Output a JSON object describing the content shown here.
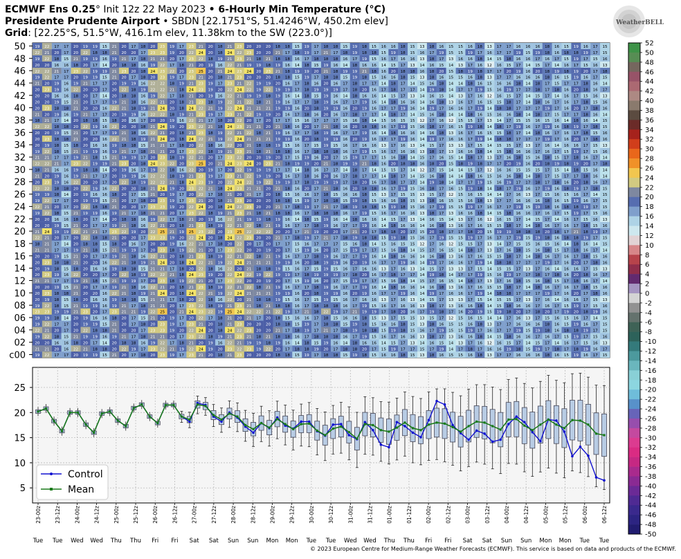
{
  "header": {
    "line1_bold_a": "ECMWF Ens 0.25",
    "line1_deg": "°",
    "line1_init": " Init 12z 22 May 2023 ",
    "line1_bullet": "•",
    "line1_bold_b": " 6-Hourly Min Temperature (°C)",
    "line2_bold": "Presidente Prudente Airport",
    "line2_rest": " • SBDN [22.1751°S, 51.4246°W, 450.2m elev]",
    "line3_bold": "Grid",
    "line3_rest": ": [22.25°S, 51.5°W, 416.1m elev, 11.38km to the SW (223.0°)]"
  },
  "logo": {
    "text": "WeatherBELL"
  },
  "copyright": "© 2023 European Centre for Medium-Range Weather Forecasts (ECMWF). This service is based on data and products of the ECMWF.",
  "chart_data": [
    {
      "type": "heatmap",
      "title": "6-Hourly Min Temperature (°C)",
      "y_tick_labels": [
        "c00",
        "02",
        "04",
        "06",
        "08",
        "10",
        "12",
        "14",
        "16",
        "18",
        "20",
        "22",
        "24",
        "26",
        "28",
        "30",
        "32",
        "34",
        "36",
        "38",
        "40",
        "42",
        "44",
        "46",
        "48",
        "50"
      ],
      "members": 51,
      "columns": 60,
      "control_row_label": "c00",
      "colorbar": {
        "ticks": [
          52,
          50,
          48,
          46,
          44,
          42,
          40,
          38,
          36,
          34,
          32,
          30,
          28,
          26,
          24,
          22,
          20,
          18,
          16,
          14,
          12,
          10,
          8,
          6,
          4,
          2,
          0,
          -2,
          -4,
          -6,
          -8,
          -10,
          -12,
          -14,
          -16,
          -18,
          -20,
          -22,
          -24,
          -26,
          -28,
          -30,
          -32,
          -34,
          -36,
          -38,
          -40,
          -42,
          -44,
          -46,
          -48,
          -50
        ],
        "stops": [
          [
            52,
            "#2e8b3f"
          ],
          [
            50,
            "#4e9a51"
          ],
          [
            48,
            "#5f7f57"
          ],
          [
            46,
            "#8a4f64"
          ],
          [
            44,
            "#a3576b"
          ],
          [
            42,
            "#b27a78"
          ],
          [
            40,
            "#a8988e"
          ],
          [
            38,
            "#6b5b4c"
          ],
          [
            36,
            "#4b3a34"
          ],
          [
            34,
            "#8b1b1b"
          ],
          [
            32,
            "#c0281c"
          ],
          [
            30,
            "#e2541a"
          ],
          [
            28,
            "#f07a1c"
          ],
          [
            26,
            "#f0a834"
          ],
          [
            24,
            "#f4e46a"
          ],
          [
            22,
            "#b0b098"
          ],
          [
            20,
            "#4c5fa7"
          ],
          [
            18,
            "#5f7ab8"
          ],
          [
            16,
            "#9fc3e0"
          ],
          [
            14,
            "#bce2ec"
          ],
          [
            12,
            "#e0eef2"
          ],
          [
            10,
            "#e4b8b8"
          ],
          [
            8,
            "#c9545a"
          ],
          [
            6,
            "#a5323c"
          ],
          [
            4,
            "#7a2a5a"
          ],
          [
            2,
            "#4a2a84"
          ],
          [
            0,
            "#ffffff"
          ],
          [
            -2,
            "#a9a9a9"
          ],
          [
            -4,
            "#7a7a7a"
          ],
          [
            -6,
            "#4d6a60"
          ],
          [
            -8,
            "#2f5a4c"
          ],
          [
            -10,
            "#2b6a68"
          ],
          [
            -12,
            "#3d8a8d"
          ],
          [
            -14,
            "#5aa7ad"
          ],
          [
            -16,
            "#79c4cc"
          ],
          [
            -18,
            "#98dbe0"
          ],
          [
            -20,
            "#7fd0df"
          ],
          [
            -22,
            "#5fa9d4"
          ],
          [
            -24,
            "#5078c0"
          ],
          [
            -26,
            "#7d4fb1"
          ],
          [
            -28,
            "#b04ca8"
          ],
          [
            -30,
            "#d84596"
          ],
          [
            -32,
            "#e0308a"
          ],
          [
            -34,
            "#d4267c"
          ],
          [
            -36,
            "#b82a8a"
          ],
          [
            -38,
            "#9a2a90"
          ],
          [
            -40,
            "#7a2a96"
          ],
          [
            -42,
            "#5c2a96"
          ],
          [
            -44,
            "#422a90"
          ],
          [
            -46,
            "#32288a"
          ],
          [
            -48,
            "#261f7a"
          ],
          [
            -50,
            "#1b1966"
          ]
        ]
      },
      "member_offsets": [
        0,
        1,
        -1,
        0,
        1,
        0,
        -1,
        2,
        0,
        -1,
        1,
        0,
        0,
        1,
        -1,
        1,
        0,
        0,
        -1,
        1,
        2,
        0,
        -1,
        0,
        1,
        0,
        -1,
        1,
        1,
        0,
        -1,
        2,
        0,
        0,
        -1,
        1,
        0,
        1,
        -1,
        0,
        1,
        0,
        -1,
        1,
        0,
        0,
        2,
        -1,
        0,
        1,
        0
      ],
      "column_means": [
        20,
        21,
        18,
        16,
        20,
        20,
        18,
        16,
        20,
        20,
        18,
        17,
        21,
        22,
        19,
        18,
        22,
        22,
        19,
        18,
        22,
        22,
        21,
        19,
        20,
        19,
        17,
        16,
        18,
        17,
        19,
        17,
        16,
        18,
        18,
        16,
        15,
        17,
        17,
        15,
        14,
        17,
        17,
        14,
        15,
        17,
        17,
        14,
        16,
        17,
        17,
        15,
        17,
        17,
        16,
        16,
        18,
        17,
        16,
        15
      ]
    },
    {
      "type": "line",
      "ylim": [
        2,
        29
      ],
      "y_ticks": [
        5,
        10,
        15,
        20,
        25
      ],
      "grid": true,
      "legend_position": "bottom-left",
      "x_tick_labels": [
        "23-00z",
        "23-12z",
        "24-00z",
        "24-12z",
        "25-00z",
        "25-12z",
        "26-00z",
        "26-12z",
        "27-00z",
        "27-12z",
        "28-00z",
        "28-12z",
        "29-00z",
        "29-12z",
        "30-00z",
        "30-12z",
        "31-00z",
        "31-12z",
        "01-00z",
        "01-12z",
        "02-00z",
        "02-12z",
        "03-00z",
        "03-12z",
        "04-00z",
        "04-12z",
        "05-00z",
        "05-12z",
        "06-00z",
        "06-12z"
      ],
      "day_labels": [
        "Tue",
        "Tue",
        "Wed",
        "Wed",
        "Thu",
        "Thu",
        "Fri",
        "Fri",
        "Sat",
        "Sat",
        "Sun",
        "Sun",
        "Mon",
        "Mon",
        "Tue",
        "Tue",
        "Wed",
        "Wed",
        "Thu",
        "Thu",
        "Fri",
        "Fri",
        "Sat",
        "Sat",
        "Sun",
        "Sun",
        "Mon",
        "Mon",
        "Tue",
        "Tue"
      ],
      "series": [
        {
          "name": "Control",
          "color": "#1010d0",
          "values": [
            20.2,
            20.8,
            18.3,
            16.3,
            20.0,
            20.0,
            17.6,
            16.0,
            19.8,
            20.2,
            18.4,
            17.3,
            20.9,
            21.6,
            19.2,
            17.9,
            21.5,
            21.5,
            19.2,
            18.2,
            21.9,
            21.5,
            19.2,
            18.2,
            20.0,
            19.0,
            17.2,
            16.0,
            17.9,
            16.9,
            19.0,
            17.4,
            16.8,
            18.2,
            18.2,
            16.3,
            15.4,
            17.6,
            17.7,
            15.5,
            14.7,
            18.1,
            16.5,
            13.6,
            13.1,
            18.1,
            17.3,
            16.0,
            15.1,
            18.5,
            22.3,
            21.6,
            17.5,
            15.9,
            14.6,
            16.4,
            15.8,
            14.2,
            14.6,
            17.7,
            19.2,
            18.1,
            16.1,
            14.3,
            18.6,
            18.4,
            16.2,
            11.3,
            13.2,
            11.4,
            7.1,
            6.5
          ]
        },
        {
          "name": "Mean",
          "color": "#1a7a1a",
          "values": [
            20.2,
            20.8,
            18.3,
            16.3,
            20.0,
            20.0,
            17.6,
            16.0,
            19.8,
            20.2,
            18.4,
            17.3,
            20.9,
            21.6,
            19.2,
            17.9,
            21.5,
            21.5,
            19.2,
            18.6,
            21.6,
            21.3,
            19.5,
            18.6,
            19.8,
            19.2,
            17.5,
            16.7,
            17.9,
            17.0,
            18.7,
            17.7,
            16.7,
            17.7,
            17.8,
            16.4,
            15.5,
            16.8,
            17.2,
            16.1,
            14.8,
            17.7,
            17.5,
            16.5,
            16.2,
            17.0,
            18.0,
            16.9,
            16.5,
            17.6,
            18.0,
            17.8,
            17.1,
            16.2,
            17.3,
            18.2,
            18.0,
            17.3,
            16.6,
            18.6,
            18.7,
            17.4,
            16.5,
            17.6,
            18.6,
            17.6,
            16.9,
            18.5,
            18.4,
            17.6,
            15.8,
            15.5
          ]
        }
      ],
      "box_spread": [
        0,
        0,
        0,
        0,
        0,
        0,
        0,
        0,
        0,
        0,
        0,
        0,
        0,
        0,
        0,
        0,
        0,
        0,
        0.5,
        0.7,
        0.8,
        0.8,
        1.0,
        1.1,
        1.2,
        1.3,
        1.4,
        1.5,
        1.6,
        1.6,
        1.7,
        1.8,
        1.8,
        1.9,
        2.0,
        2.1,
        2.2,
        2.2,
        2.3,
        2.4,
        2.5,
        2.6,
        2.6,
        2.7,
        2.8,
        2.8,
        2.9,
        3.0,
        3.0,
        3.1,
        3.2,
        3.3,
        3.3,
        3.4,
        3.5,
        3.5,
        3.6,
        3.7,
        3.8,
        3.8,
        3.9,
        4.0,
        4.0,
        4.1,
        4.2,
        4.2,
        4.3,
        4.4,
        4.5,
        4.5,
        4.6,
        4.7
      ]
    }
  ]
}
